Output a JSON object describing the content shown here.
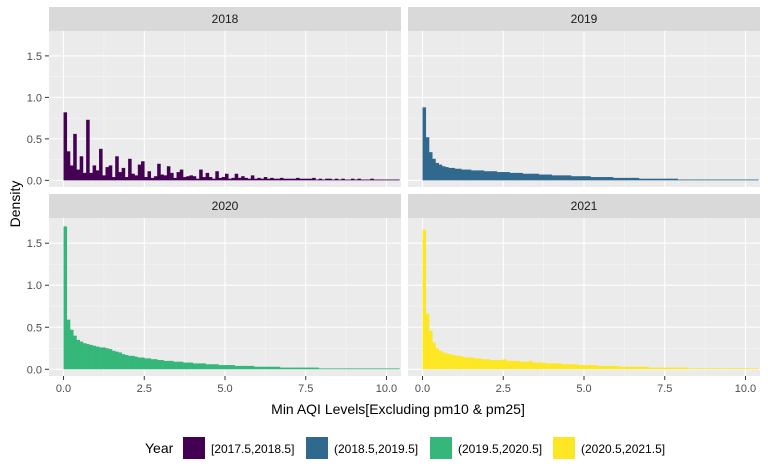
{
  "chart_data": {
    "type": "bar",
    "subtype": "faceted-histogram",
    "xlabel": "Min AQI Levels[Excluding pm10 & pm25]",
    "ylabel": "Density",
    "xlim": [
      -0.45,
      10.45
    ],
    "ylim": [
      -0.08,
      1.8
    ],
    "x_ticks": [
      0.0,
      2.5,
      5.0,
      7.5,
      10.0
    ],
    "x_tick_labels": [
      "0.0",
      "2.5",
      "5.0",
      "7.5",
      "10.0"
    ],
    "y_ticks": [
      0.0,
      0.5,
      1.0,
      1.5
    ],
    "y_tick_labels": [
      "0.0",
      "0.5",
      "1.0",
      "1.5"
    ],
    "bin_width": 0.1,
    "grid": true,
    "legend_title": "Year",
    "legend_position": "bottom",
    "panels": [
      {
        "label": "2018",
        "legend": "[2017.5,2018.5]",
        "color": "#440154",
        "x_start": 0.05,
        "values": [
          0.82,
          0.35,
          0.18,
          0.56,
          0.13,
          0.29,
          0.09,
          0.73,
          0.09,
          0.18,
          0.12,
          0.38,
          0.06,
          0.16,
          0.18,
          0.04,
          0.29,
          0.1,
          0.15,
          0.04,
          0.26,
          0.08,
          0.06,
          0.19,
          0.23,
          0.04,
          0.11,
          0.03,
          0.05,
          0.2,
          0.07,
          0.06,
          0.17,
          0.09,
          0.03,
          0.1,
          0.13,
          0.04,
          0.05,
          0.06,
          0.05,
          0.02,
          0.13,
          0.04,
          0.09,
          0.04,
          0.02,
          0.11,
          0.03,
          0.04,
          0.08,
          0.02,
          0.03,
          0.08,
          0.03,
          0.05,
          0.03,
          0.02,
          0.06,
          0.02,
          0.03,
          0.02,
          0.04,
          0.02,
          0.03,
          0.02,
          0.02,
          0.03,
          0.02,
          0.02,
          0.02,
          0.02,
          0.03,
          0.02,
          0.02,
          0.02,
          0.02,
          0.03,
          0.01,
          0.02,
          0.01,
          0.02,
          0.02,
          0.01,
          0.02,
          0.01,
          0.02,
          0.01,
          0.01,
          0.02,
          0.01,
          0.02,
          0.01,
          0.01,
          0.01,
          0.02,
          0.01,
          0.01,
          0.01,
          0.01,
          0.01,
          0.01,
          0.01,
          0.01
        ]
      },
      {
        "label": "2019",
        "legend": "(2018.5,2019.5]",
        "color": "#31688E",
        "x_start": 0.05,
        "values": [
          0.88,
          0.52,
          0.34,
          0.26,
          0.21,
          0.19,
          0.17,
          0.16,
          0.15,
          0.15,
          0.14,
          0.14,
          0.13,
          0.13,
          0.13,
          0.12,
          0.12,
          0.12,
          0.12,
          0.11,
          0.11,
          0.11,
          0.11,
          0.1,
          0.1,
          0.1,
          0.1,
          0.09,
          0.09,
          0.09,
          0.09,
          0.08,
          0.08,
          0.08,
          0.08,
          0.08,
          0.07,
          0.07,
          0.07,
          0.07,
          0.06,
          0.06,
          0.06,
          0.06,
          0.06,
          0.06,
          0.05,
          0.05,
          0.05,
          0.05,
          0.05,
          0.05,
          0.04,
          0.04,
          0.04,
          0.04,
          0.04,
          0.04,
          0.04,
          0.03,
          0.03,
          0.03,
          0.03,
          0.03,
          0.03,
          0.03,
          0.03,
          0.02,
          0.02,
          0.02,
          0.02,
          0.02,
          0.02,
          0.02,
          0.02,
          0.02,
          0.02,
          0.02,
          0.02,
          0.01,
          0.01,
          0.01,
          0.01,
          0.01,
          0.01,
          0.01,
          0.01,
          0.01,
          0.01,
          0.01,
          0.01,
          0.01,
          0.01,
          0.01,
          0.01,
          0.01,
          0.01,
          0.01,
          0.01,
          0.01,
          0.01,
          0.01,
          0.01,
          0.01
        ]
      },
      {
        "label": "2020",
        "legend": "(2019.5,2020.5]",
        "color": "#35B779",
        "x_start": 0.05,
        "values": [
          1.7,
          0.59,
          0.47,
          0.4,
          0.35,
          0.33,
          0.31,
          0.3,
          0.29,
          0.28,
          0.27,
          0.26,
          0.26,
          0.25,
          0.24,
          0.22,
          0.21,
          0.2,
          0.18,
          0.17,
          0.16,
          0.16,
          0.15,
          0.14,
          0.14,
          0.13,
          0.13,
          0.12,
          0.12,
          0.11,
          0.11,
          0.1,
          0.1,
          0.1,
          0.09,
          0.09,
          0.09,
          0.08,
          0.08,
          0.08,
          0.07,
          0.07,
          0.07,
          0.07,
          0.06,
          0.06,
          0.06,
          0.06,
          0.05,
          0.05,
          0.05,
          0.05,
          0.05,
          0.04,
          0.04,
          0.04,
          0.04,
          0.04,
          0.04,
          0.03,
          0.03,
          0.03,
          0.03,
          0.03,
          0.03,
          0.03,
          0.03,
          0.02,
          0.02,
          0.02,
          0.02,
          0.02,
          0.02,
          0.02,
          0.02,
          0.02,
          0.02,
          0.02,
          0.02,
          0.01,
          0.01,
          0.01,
          0.01,
          0.01,
          0.01,
          0.01,
          0.01,
          0.01,
          0.01,
          0.01,
          0.01,
          0.01,
          0.01,
          0.01,
          0.01,
          0.01,
          0.01,
          0.01,
          0.01,
          0.01,
          0.01,
          0.01,
          0.01,
          0.01
        ]
      },
      {
        "label": "2021",
        "legend": "(2020.5,2021.5]",
        "color": "#FDE725",
        "x_start": 0.05,
        "values": [
          1.66,
          0.66,
          0.46,
          0.32,
          0.25,
          0.22,
          0.2,
          0.19,
          0.18,
          0.17,
          0.16,
          0.16,
          0.15,
          0.14,
          0.14,
          0.14,
          0.13,
          0.13,
          0.12,
          0.12,
          0.12,
          0.11,
          0.11,
          0.11,
          0.11,
          0.12,
          0.1,
          0.1,
          0.1,
          0.1,
          0.09,
          0.09,
          0.09,
          0.1,
          0.08,
          0.08,
          0.08,
          0.08,
          0.07,
          0.07,
          0.07,
          0.07,
          0.07,
          0.06,
          0.06,
          0.06,
          0.06,
          0.06,
          0.05,
          0.05,
          0.05,
          0.05,
          0.05,
          0.05,
          0.04,
          0.04,
          0.04,
          0.04,
          0.04,
          0.04,
          0.04,
          0.03,
          0.03,
          0.03,
          0.03,
          0.03,
          0.03,
          0.03,
          0.03,
          0.03,
          0.02,
          0.02,
          0.02,
          0.02,
          0.02,
          0.02,
          0.02,
          0.02,
          0.02,
          0.02,
          0.02,
          0.02,
          0.01,
          0.01,
          0.01,
          0.01,
          0.01,
          0.01,
          0.01,
          0.01,
          0.01,
          0.01,
          0.01,
          0.01,
          0.01,
          0.01,
          0.01,
          0.01,
          0.01,
          0.01,
          0.01,
          0.01,
          0.01,
          0.01
        ]
      }
    ]
  }
}
